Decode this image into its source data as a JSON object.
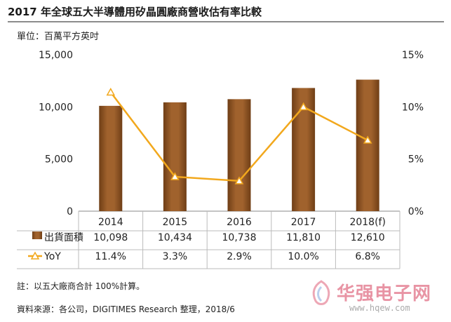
{
  "title": "2017 年全球五大半導體用矽晶圓廠商營收估有率比較",
  "unit": "單位：百萬平方英吋",
  "note": "註：以五大廠商合計 100%計算。",
  "source": "資料來源：各公司，DIGITIMES Research 整理，2018/6",
  "watermark": {
    "text": "华强电子网",
    "url": "www.hqew.com"
  },
  "colors": {
    "bar": "#a0622d",
    "bar_dark": "#6f3e16",
    "line": "#f2a81d"
  },
  "chart_data": {
    "type": "bar",
    "categories": [
      "2014",
      "2015",
      "2016",
      "2017",
      "2018(f)"
    ],
    "series": [
      {
        "name": "出貨面積",
        "axis": "left",
        "values": [
          10098,
          10434,
          10738,
          11810,
          12610
        ],
        "labels": [
          "10,098",
          "10,434",
          "10,738",
          "11,810",
          "12,610"
        ]
      },
      {
        "name": "YoY",
        "axis": "right",
        "type": "line",
        "values": [
          11.4,
          3.3,
          2.9,
          10.0,
          6.8
        ],
        "labels": [
          "11.4%",
          "3.3%",
          "2.9%",
          "10.0%",
          "6.8%"
        ]
      }
    ],
    "ylim": [
      0,
      15000
    ],
    "y2lim": [
      0,
      15
    ],
    "yticks": [
      "0",
      "5,000",
      "10,000",
      "15,000"
    ],
    "y2ticks": [
      "0%",
      "5%",
      "10%",
      "15%"
    ],
    "grid": false
  }
}
